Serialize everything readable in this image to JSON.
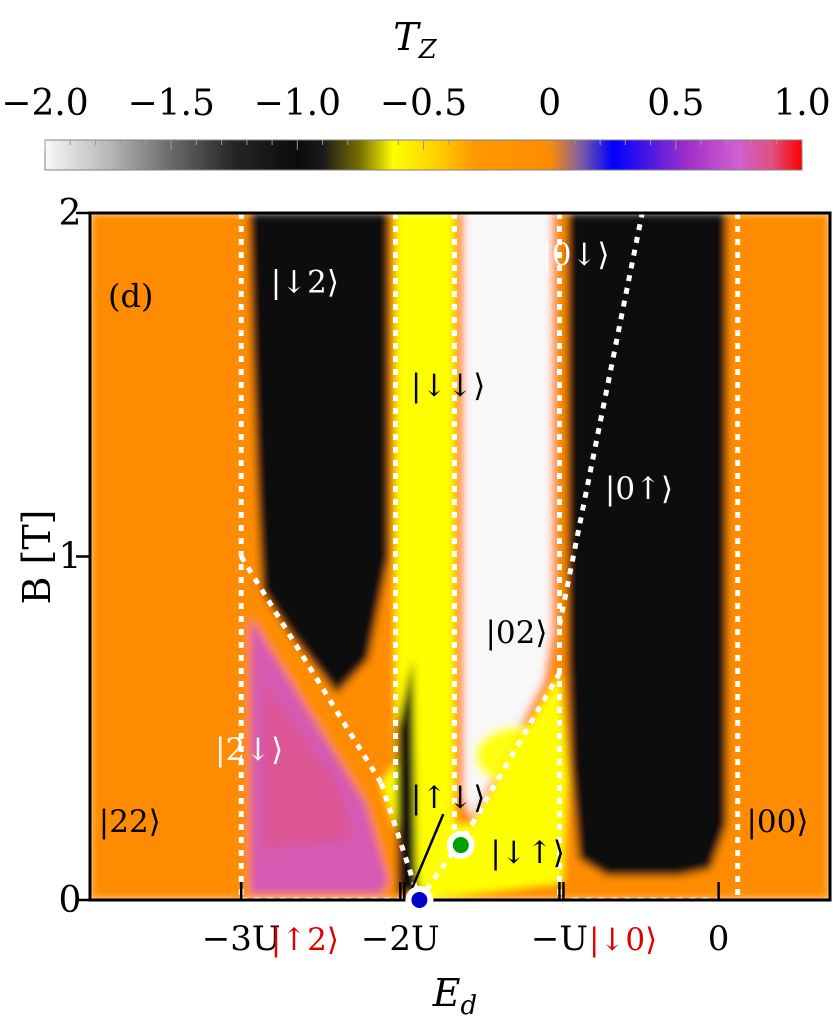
{
  "chart_data": {
    "type": "heatmap",
    "panel_label": "(d)",
    "colorbar": {
      "title": "T",
      "title_sub": "Z",
      "range": [
        -2.0,
        1.0
      ],
      "ticks": [
        "−2.0",
        "−1.5",
        "−1.0",
        "−0.5",
        "0",
        "0.5",
        "1.0"
      ],
      "tick_values": [
        -2.0,
        -1.5,
        -1.0,
        -0.5,
        0,
        0.5,
        1.0
      ],
      "stops": [
        {
          "v": -2.0,
          "color": "#f8f8f8"
        },
        {
          "v": -1.75,
          "color": "#b8b8b8"
        },
        {
          "v": -1.5,
          "color": "#6a6a6a"
        },
        {
          "v": -1.25,
          "color": "#252525"
        },
        {
          "v": -1.0,
          "color": "#0b0b0b"
        },
        {
          "v": -0.9,
          "color": "#1a1a1a"
        },
        {
          "v": -0.75,
          "color": "#7a7000"
        },
        {
          "v": -0.62,
          "color": "#ffff00"
        },
        {
          "v": -0.45,
          "color": "#ffd000"
        },
        {
          "v": -0.3,
          "color": "#ff9900"
        },
        {
          "v": 0.0,
          "color": "#ff8c00"
        },
        {
          "v": 0.12,
          "color": "#8060a0"
        },
        {
          "v": 0.25,
          "color": "#0000ff"
        },
        {
          "v": 0.55,
          "color": "#a030c8"
        },
        {
          "v": 0.75,
          "color": "#d060d0"
        },
        {
          "v": 0.88,
          "color": "#e05080"
        },
        {
          "v": 1.0,
          "color": "#ff0000"
        }
      ]
    },
    "xlabel": "E",
    "xlabel_sub": "d",
    "ylabel": "B [T]",
    "xlim": [
      -3.95,
      0.7
    ],
    "ylim": [
      0,
      2
    ],
    "x_ticks": [
      {
        "value": -3,
        "label": "−3U"
      },
      {
        "value": -2,
        "label": "−2U"
      },
      {
        "value": -1,
        "label": "−U"
      },
      {
        "value": 0,
        "label": "0"
      }
    ],
    "x_tick_extra": [
      -2.0,
      -1.0
    ],
    "y_ticks": [
      {
        "value": 0,
        "label": "0"
      },
      {
        "value": 1,
        "label": "1"
      },
      {
        "value": 2,
        "label": "2"
      }
    ],
    "red_labels": [
      {
        "x": -2.6,
        "y": 0.0,
        "text": "|↑2⟩"
      },
      {
        "x": -0.6,
        "y": 0.0,
        "text": "|↓0⟩"
      }
    ],
    "state_labels": [
      {
        "x": -2.6,
        "y": 1.8,
        "text": "|↓2⟩",
        "color": "#ffffff"
      },
      {
        "x": -1.7,
        "y": 1.5,
        "text": "|↓↓⟩",
        "color": "#000000"
      },
      {
        "x": -0.9,
        "y": 1.88,
        "text": "|0↓⟩",
        "color": "#ffffff"
      },
      {
        "x": -0.5,
        "y": 1.2,
        "text": "|0↑⟩",
        "color": "#ffffff"
      },
      {
        "x": -1.27,
        "y": 0.78,
        "text": "|02⟩",
        "color": "#000000"
      },
      {
        "x": -2.95,
        "y": 0.44,
        "text": "|2↓⟩",
        "color": "#ffffff"
      },
      {
        "x": -3.7,
        "y": 0.23,
        "text": "|22⟩",
        "color": "#000000"
      },
      {
        "x": 0.37,
        "y": 0.23,
        "text": "|00⟩",
        "color": "#000000"
      },
      {
        "x": -1.7,
        "y": 0.3,
        "text": "|↑↓⟩",
        "color": "#000000"
      },
      {
        "x": -1.2,
        "y": 0.14,
        "text": "|↓↑⟩",
        "color": "#000000"
      }
    ],
    "regions": [
      {
        "name": "|22⟩",
        "value": 0.0
      },
      {
        "name": "|↓2⟩",
        "value": -1.0
      },
      {
        "name": "|2↓⟩",
        "value": 0.8
      },
      {
        "name": "|↓↓⟩",
        "value": -0.62
      },
      {
        "name": "|↑↓⟩",
        "value": -1.0
      },
      {
        "name": "|02⟩",
        "value": -2.0
      },
      {
        "name": "|↓↑⟩",
        "value": -0.4
      },
      {
        "name": "|0↓⟩",
        "value": -1.0
      },
      {
        "name": "|0↑⟩",
        "value": -1.0
      },
      {
        "name": "|00⟩",
        "value": 0.0
      }
    ],
    "boundaries": [
      {
        "x1": -3.0,
        "y1": 2.0,
        "x2": -3.0,
        "y2": 0.0
      },
      {
        "x1": -3.0,
        "y1": 1.0,
        "x2": -2.12,
        "y2": 0.34
      },
      {
        "x1": -2.12,
        "y1": 0.34,
        "x2": -1.88,
        "y2": 0.0
      },
      {
        "x1": -2.03,
        "y1": 2.0,
        "x2": -2.03,
        "y2": 0.32
      },
      {
        "x1": -1.66,
        "y1": 2.0,
        "x2": -1.66,
        "y2": 0.2
      },
      {
        "x1": -1.88,
        "y1": 0.0,
        "x2": -1.55,
        "y2": 0.22
      },
      {
        "x1": -1.55,
        "y1": 0.22,
        "x2": -1.0,
        "y2": 0.66
      },
      {
        "x1": -1.0,
        "y1": 2.0,
        "x2": -1.0,
        "y2": 0.0
      },
      {
        "x1": -1.0,
        "y1": 0.8,
        "x2": -0.48,
        "y2": 2.0
      },
      {
        "x1": 0.12,
        "y1": 2.0,
        "x2": 0.12,
        "y2": 0.0
      },
      {
        "x1": -3.0,
        "y1": 0.0,
        "x2": -1.88,
        "y2": 0.0
      },
      {
        "x1": -1.0,
        "y1": 0.0,
        "x2": 0.0,
        "y2": 0.0
      }
    ],
    "annotation_line": {
      "x1": -1.93,
      "y1": 0.03,
      "x2": -1.73,
      "y2": 0.25
    },
    "markers": [
      {
        "x": -1.88,
        "y": 0.0,
        "color": "#0000cc"
      },
      {
        "x": -1.62,
        "y": 0.16,
        "color": "#00a000"
      }
    ]
  }
}
